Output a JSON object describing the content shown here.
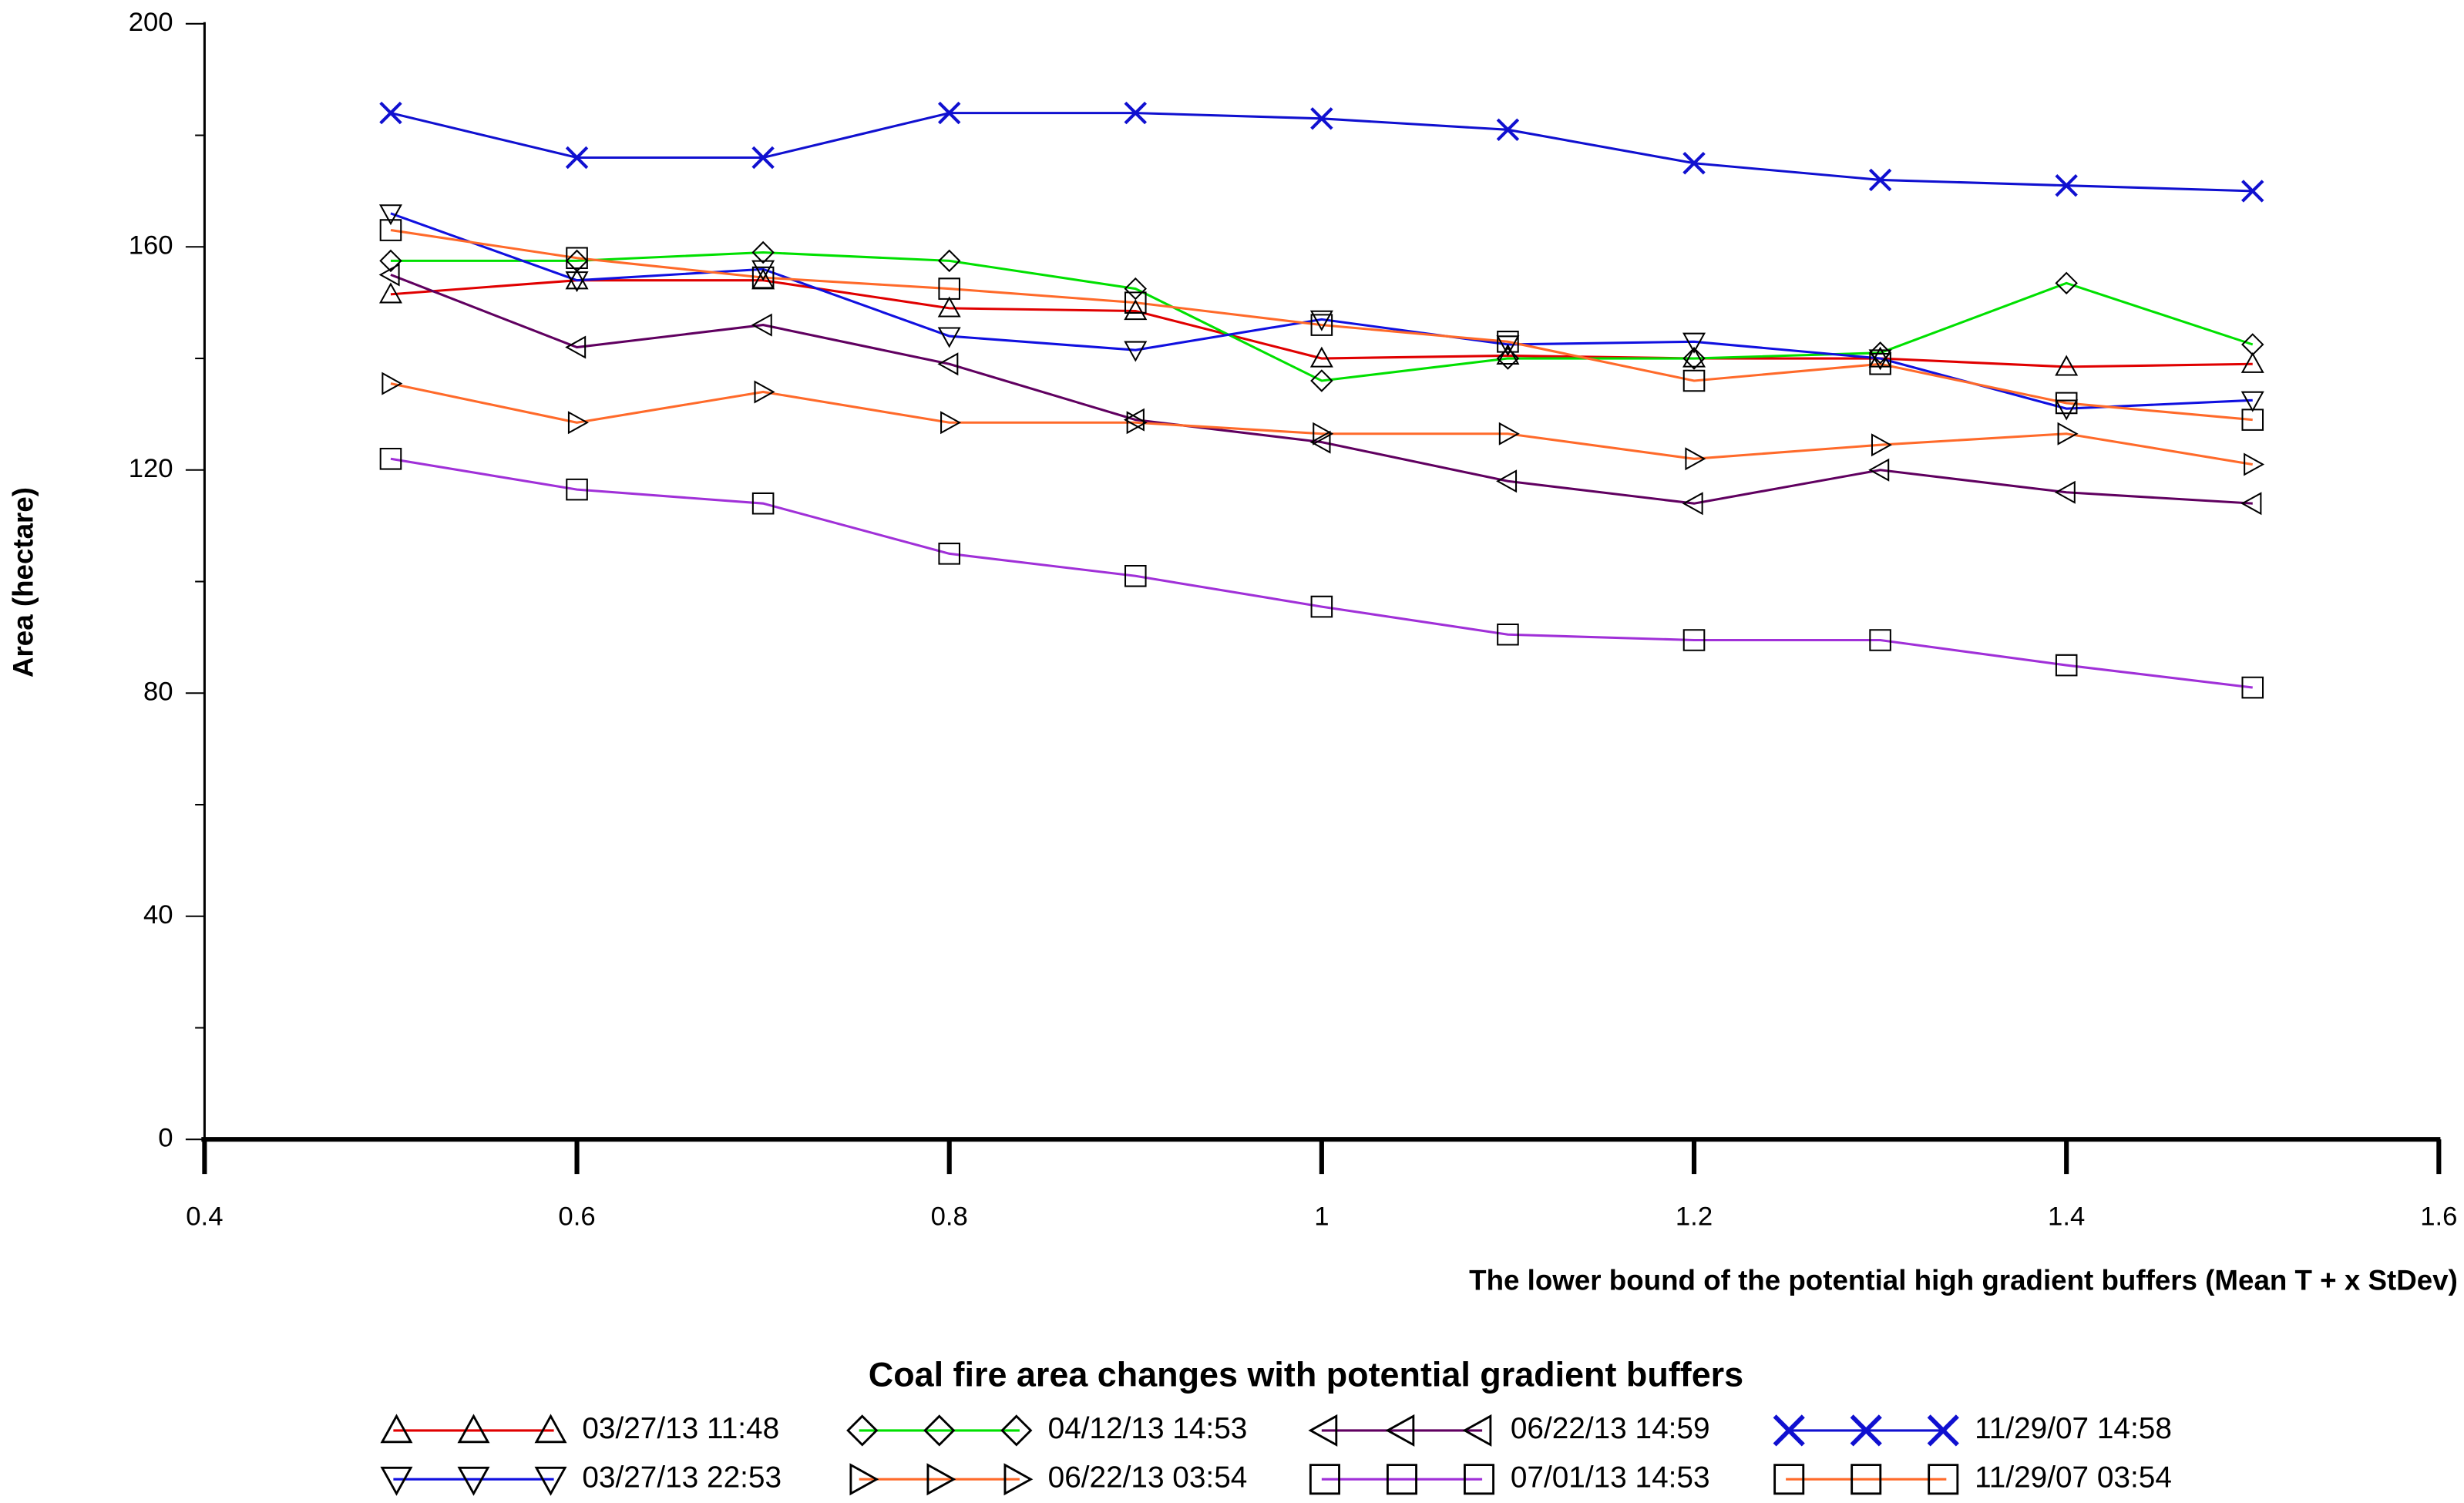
{
  "chart_data": {
    "type": "line",
    "title": "Coal fire area changes with potential gradient buffers",
    "x_label": "The lower bound of the potential high gradient buffers (Mean T  + x StDev)",
    "y_label": "Area (hectare)",
    "x": [
      0.5,
      0.6,
      0.7,
      0.8,
      0.9,
      1.0,
      1.1,
      1.2,
      1.3,
      1.4,
      1.5
    ],
    "xlim": [
      0.4,
      1.6
    ],
    "xticks": [
      0.4,
      0.6,
      0.8,
      1,
      1.2,
      1.4,
      1.6
    ],
    "ylim": [
      0,
      200
    ],
    "yticks": [
      0,
      40,
      80,
      120,
      160,
      200
    ],
    "grid": false,
    "legend": "bottom",
    "series": [
      {
        "name": "03/27/13 11:48",
        "color": "#e00000",
        "marker": "triangle-up",
        "values": [
          151.5,
          154,
          154,
          149,
          148.5,
          140,
          140.5,
          140,
          140,
          138.5,
          139
        ]
      },
      {
        "name": "04/12/13 14:53",
        "color": "#00e000",
        "marker": "diamond",
        "values": [
          157.5,
          157.5,
          159,
          157.5,
          152.5,
          136,
          140,
          140,
          141,
          153.5,
          142.5
        ]
      },
      {
        "name": "06/22/13 14:59",
        "color": "#600060",
        "marker": "triangle-left",
        "values": [
          155,
          142,
          146,
          139,
          129,
          125,
          118,
          114,
          120,
          116,
          114
        ]
      },
      {
        "name": "11/29/07 14:58",
        "color": "#1010d0",
        "marker": "cross",
        "values": [
          184,
          176,
          176,
          184,
          184,
          183,
          181,
          175,
          172,
          171,
          170
        ]
      },
      {
        "name": "03/27/13 22:53",
        "color": "#1010e0",
        "marker": "triangle-down",
        "values": [
          166,
          154,
          156,
          144,
          141.5,
          147,
          142.5,
          143,
          140,
          131,
          132.5
        ]
      },
      {
        "name": "06/22/13 03:54",
        "color": "#ff6a2a",
        "marker": "triangle-right",
        "values": [
          135.5,
          128.5,
          134,
          128.5,
          128.5,
          126.5,
          126.5,
          122,
          124.5,
          126.5,
          121
        ]
      },
      {
        "name": "07/01/13 14:53",
        "color": "#a030d8",
        "marker": "square",
        "values": [
          122,
          116.5,
          114,
          105,
          101,
          95.5,
          90.5,
          89.5,
          89.5,
          85,
          81
        ]
      },
      {
        "name": "11/29/07 03:54",
        "color": "#ff6a2a",
        "marker": "square",
        "values": [
          163,
          158,
          154.5,
          152.5,
          150,
          146,
          143,
          136,
          139,
          132,
          129
        ]
      }
    ]
  }
}
